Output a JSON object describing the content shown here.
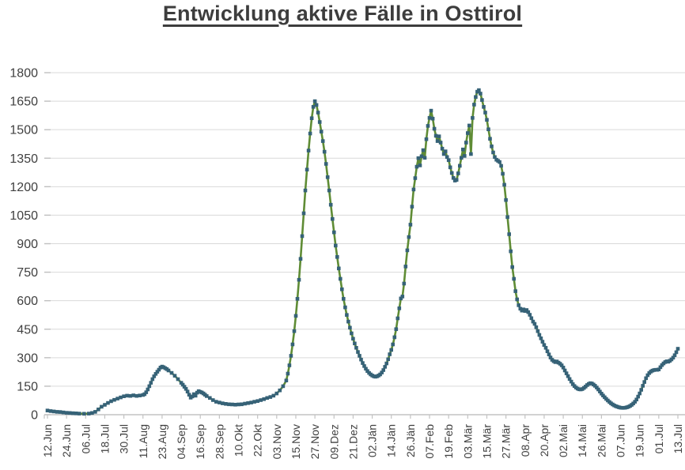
{
  "page": {
    "title": "Entwicklung aktive Fälle in Osttirol"
  },
  "chart_data": {
    "type": "line",
    "title": "Entwicklung aktive Fälle in Osttirol",
    "series_name": "aktive Fälle Osttirol",
    "legend": "none",
    "grid": "horizontal",
    "marker": "square",
    "x_tick_interval_days": 12,
    "xlim_days": [
      0,
      396
    ],
    "ylim": [
      0,
      1800
    ],
    "y_ticks": [
      0,
      150,
      300,
      450,
      600,
      750,
      900,
      1050,
      1200,
      1350,
      1500,
      1650,
      1800
    ],
    "x_tick_labels": [
      "12.Jun",
      "24.Jun",
      "06.Jul",
      "18.Jul",
      "30.Jul",
      "11.Aug",
      "23.Aug",
      "04.Sep",
      "16.Sep",
      "28.Sep",
      "10.Okt",
      "22.Okt",
      "03.Nov",
      "15.Nov",
      "27.Nov",
      "09.Dez",
      "21.Dez",
      "02.Jän",
      "14.Jän",
      "26.Jän",
      "07.Feb",
      "19.Feb",
      "03.Mär",
      "15.Mär",
      "27.Mär",
      "08.Apr",
      "20.Apr",
      "02.Mai",
      "14.Mai",
      "26.Mai",
      "07.Jun",
      "19.Jun",
      "01.Jul",
      "13.Jul"
    ],
    "colors": {
      "line": "#5f8c35",
      "marker": "#366277",
      "grid": "#d9d9d9",
      "axis": "#c3c3c3",
      "tick": "#c0c0c0",
      "label_text": "#404040",
      "title_text": "#3d3d3d"
    },
    "points_day_value": [
      [
        0,
        22
      ],
      [
        2,
        19
      ],
      [
        4,
        17
      ],
      [
        6,
        15
      ],
      [
        8,
        14
      ],
      [
        10,
        12
      ],
      [
        12,
        10
      ],
      [
        14,
        9
      ],
      [
        16,
        8
      ],
      [
        18,
        7
      ],
      [
        20,
        6
      ],
      [
        23,
        5
      ],
      [
        26,
        6
      ],
      [
        28,
        9
      ],
      [
        30,
        15
      ],
      [
        32,
        28
      ],
      [
        34,
        42
      ],
      [
        36,
        52
      ],
      [
        38,
        62
      ],
      [
        40,
        71
      ],
      [
        42,
        78
      ],
      [
        44,
        85
      ],
      [
        46,
        91
      ],
      [
        48,
        97
      ],
      [
        50,
        100
      ],
      [
        52,
        99
      ],
      [
        54,
        102
      ],
      [
        56,
        99
      ],
      [
        58,
        101
      ],
      [
        60,
        104
      ],
      [
        61,
        108
      ],
      [
        62,
        118
      ],
      [
        63,
        133
      ],
      [
        64,
        150
      ],
      [
        65,
        168
      ],
      [
        66,
        187
      ],
      [
        67,
        202
      ],
      [
        68,
        215
      ],
      [
        69,
        226
      ],
      [
        70,
        237
      ],
      [
        71,
        248
      ],
      [
        72,
        253
      ],
      [
        73,
        250
      ],
      [
        74,
        245
      ],
      [
        75,
        240
      ],
      [
        76,
        233
      ],
      [
        78,
        220
      ],
      [
        80,
        205
      ],
      [
        82,
        187
      ],
      [
        84,
        168
      ],
      [
        85,
        158
      ],
      [
        86,
        147
      ],
      [
        87,
        136
      ],
      [
        88,
        122
      ],
      [
        89,
        105
      ],
      [
        90,
        90
      ],
      [
        91,
        96
      ],
      [
        92,
        108
      ],
      [
        93,
        100
      ],
      [
        94,
        116
      ],
      [
        95,
        124
      ],
      [
        96,
        120
      ],
      [
        97,
        117
      ],
      [
        98,
        112
      ],
      [
        99,
        105
      ],
      [
        100,
        98
      ],
      [
        102,
        88
      ],
      [
        104,
        77
      ],
      [
        106,
        68
      ],
      [
        108,
        64
      ],
      [
        110,
        60
      ],
      [
        112,
        57
      ],
      [
        114,
        55
      ],
      [
        116,
        54
      ],
      [
        118,
        53
      ],
      [
        120,
        54
      ],
      [
        122,
        55
      ],
      [
        124,
        58
      ],
      [
        126,
        61
      ],
      [
        128,
        64
      ],
      [
        130,
        68
      ],
      [
        132,
        72
      ],
      [
        134,
        77
      ],
      [
        136,
        82
      ],
      [
        138,
        88
      ],
      [
        140,
        93
      ],
      [
        142,
        100
      ],
      [
        144,
        112
      ],
      [
        146,
        128
      ],
      [
        148,
        150
      ],
      [
        150,
        180
      ],
      [
        151,
        216
      ],
      [
        152,
        260
      ],
      [
        153,
        310
      ],
      [
        154,
        370
      ],
      [
        155,
        440
      ],
      [
        156,
        520
      ],
      [
        157,
        610
      ],
      [
        158,
        710
      ],
      [
        159,
        820
      ],
      [
        160,
        940
      ],
      [
        161,
        1060
      ],
      [
        162,
        1180
      ],
      [
        163,
        1290
      ],
      [
        164,
        1390
      ],
      [
        165,
        1480
      ],
      [
        166,
        1560
      ],
      [
        167,
        1620
      ],
      [
        168,
        1650
      ],
      [
        169,
        1630
      ],
      [
        170,
        1590
      ],
      [
        171,
        1540
      ],
      [
        172,
        1490
      ],
      [
        173,
        1440
      ],
      [
        174,
        1384
      ],
      [
        175,
        1320
      ],
      [
        176,
        1250
      ],
      [
        177,
        1180
      ],
      [
        178,
        1105
      ],
      [
        179,
        1030
      ],
      [
        180,
        960
      ],
      [
        181,
        890
      ],
      [
        182,
        830
      ],
      [
        183,
        770
      ],
      [
        184,
        715
      ],
      [
        185,
        660
      ],
      [
        186,
        610
      ],
      [
        187,
        565
      ],
      [
        188,
        525
      ],
      [
        189,
        490
      ],
      [
        190,
        458
      ],
      [
        191,
        428
      ],
      [
        192,
        400
      ],
      [
        193,
        375
      ],
      [
        194,
        352
      ],
      [
        195,
        330
      ],
      [
        196,
        310
      ],
      [
        197,
        290
      ],
      [
        198,
        272
      ],
      [
        199,
        256
      ],
      [
        200,
        242
      ],
      [
        201,
        230
      ],
      [
        202,
        220
      ],
      [
        203,
        212
      ],
      [
        204,
        206
      ],
      [
        205,
        202
      ],
      [
        206,
        200
      ],
      [
        207,
        202
      ],
      [
        208,
        206
      ],
      [
        209,
        212
      ],
      [
        210,
        222
      ],
      [
        211,
        235
      ],
      [
        212,
        252
      ],
      [
        213,
        270
      ],
      [
        214,
        292
      ],
      [
        215,
        318
      ],
      [
        216,
        341
      ],
      [
        217,
        370
      ],
      [
        218,
        408
      ],
      [
        219,
        450
      ],
      [
        220,
        507
      ],
      [
        221,
        560
      ],
      [
        222,
        612
      ],
      [
        223,
        622
      ],
      [
        224,
        690
      ],
      [
        225,
        780
      ],
      [
        226,
        865
      ],
      [
        227,
        935
      ],
      [
        228,
        1000
      ],
      [
        229,
        1095
      ],
      [
        230,
        1185
      ],
      [
        231,
        1245
      ],
      [
        232,
        1305
      ],
      [
        233,
        1350
      ],
      [
        234,
        1312
      ],
      [
        235,
        1360
      ],
      [
        236,
        1392
      ],
      [
        237,
        1352
      ],
      [
        238,
        1450
      ],
      [
        239,
        1520
      ],
      [
        240,
        1562
      ],
      [
        241,
        1600
      ],
      [
        242,
        1558
      ],
      [
        243,
        1505
      ],
      [
        244,
        1468
      ],
      [
        245,
        1440
      ],
      [
        246,
        1465
      ],
      [
        247,
        1432
      ],
      [
        248,
        1400
      ],
      [
        249,
        1372
      ],
      [
        250,
        1386
      ],
      [
        251,
        1356
      ],
      [
        252,
        1340
      ],
      [
        253,
        1302
      ],
      [
        254,
        1272
      ],
      [
        255,
        1246
      ],
      [
        256,
        1232
      ],
      [
        257,
        1236
      ],
      [
        258,
        1270
      ],
      [
        259,
        1310
      ],
      [
        260,
        1352
      ],
      [
        261,
        1396
      ],
      [
        262,
        1362
      ],
      [
        263,
        1432
      ],
      [
        264,
        1482
      ],
      [
        265,
        1522
      ],
      [
        266,
        1372
      ],
      [
        267,
        1562
      ],
      [
        268,
        1632
      ],
      [
        269,
        1672
      ],
      [
        270,
        1700
      ],
      [
        271,
        1708
      ],
      [
        272,
        1690
      ],
      [
        273,
        1656
      ],
      [
        274,
        1620
      ],
      [
        275,
        1590
      ],
      [
        276,
        1552
      ],
      [
        277,
        1502
      ],
      [
        278,
        1452
      ],
      [
        279,
        1412
      ],
      [
        280,
        1380
      ],
      [
        281,
        1356
      ],
      [
        282,
        1342
      ],
      [
        283,
        1336
      ],
      [
        284,
        1330
      ],
      [
        285,
        1310
      ],
      [
        286,
        1268
      ],
      [
        287,
        1210
      ],
      [
        288,
        1130
      ],
      [
        289,
        1040
      ],
      [
        290,
        950
      ],
      [
        291,
        860
      ],
      [
        292,
        777
      ],
      [
        293,
        715
      ],
      [
        294,
        650
      ],
      [
        295,
        607
      ],
      [
        296,
        576
      ],
      [
        297,
        558
      ],
      [
        298,
        548
      ],
      [
        299,
        554
      ],
      [
        300,
        546
      ],
      [
        301,
        551
      ],
      [
        302,
        540
      ],
      [
        303,
        526
      ],
      [
        304,
        508
      ],
      [
        305,
        490
      ],
      [
        306,
        478
      ],
      [
        307,
        460
      ],
      [
        308,
        440
      ],
      [
        309,
        420
      ],
      [
        310,
        402
      ],
      [
        311,
        384
      ],
      [
        312,
        367
      ],
      [
        313,
        352
      ],
      [
        314,
        334
      ],
      [
        315,
        317
      ],
      [
        316,
        301
      ],
      [
        317,
        289
      ],
      [
        318,
        282
      ],
      [
        319,
        277
      ],
      [
        320,
        280
      ],
      [
        321,
        274
      ],
      [
        322,
        268
      ],
      [
        323,
        260
      ],
      [
        324,
        248
      ],
      [
        325,
        233
      ],
      [
        326,
        218
      ],
      [
        327,
        203
      ],
      [
        328,
        188
      ],
      [
        329,
        174
      ],
      [
        330,
        161
      ],
      [
        331,
        151
      ],
      [
        332,
        143
      ],
      [
        333,
        137
      ],
      [
        334,
        134
      ],
      [
        335,
        133
      ],
      [
        336,
        135
      ],
      [
        337,
        141
      ],
      [
        338,
        148
      ],
      [
        339,
        156
      ],
      [
        340,
        162
      ],
      [
        341,
        166
      ],
      [
        342,
        164
      ],
      [
        343,
        159
      ],
      [
        344,
        152
      ],
      [
        345,
        143
      ],
      [
        346,
        133
      ],
      [
        347,
        122
      ],
      [
        348,
        111
      ],
      [
        349,
        101
      ],
      [
        350,
        92
      ],
      [
        351,
        83
      ],
      [
        352,
        75
      ],
      [
        353,
        67
      ],
      [
        354,
        60
      ],
      [
        355,
        54
      ],
      [
        356,
        49
      ],
      [
        357,
        45
      ],
      [
        358,
        42
      ],
      [
        359,
        39
      ],
      [
        360,
        37
      ],
      [
        361,
        36
      ],
      [
        362,
        36
      ],
      [
        363,
        37
      ],
      [
        364,
        39
      ],
      [
        365,
        42
      ],
      [
        366,
        46
      ],
      [
        367,
        52
      ],
      [
        368,
        59
      ],
      [
        369,
        68
      ],
      [
        370,
        80
      ],
      [
        371,
        95
      ],
      [
        372,
        112
      ],
      [
        373,
        131
      ],
      [
        374,
        152
      ],
      [
        375,
        172
      ],
      [
        376,
        192
      ],
      [
        377,
        208
      ],
      [
        378,
        219
      ],
      [
        379,
        227
      ],
      [
        380,
        232
      ],
      [
        381,
        235
      ],
      [
        382,
        236
      ],
      [
        383,
        236
      ],
      [
        384,
        238
      ],
      [
        385,
        250
      ],
      [
        386,
        261
      ],
      [
        387,
        270
      ],
      [
        388,
        277
      ],
      [
        389,
        281
      ],
      [
        390,
        279
      ],
      [
        391,
        284
      ],
      [
        392,
        291
      ],
      [
        393,
        300
      ],
      [
        394,
        313
      ],
      [
        395,
        329
      ],
      [
        396,
        347
      ]
    ]
  }
}
